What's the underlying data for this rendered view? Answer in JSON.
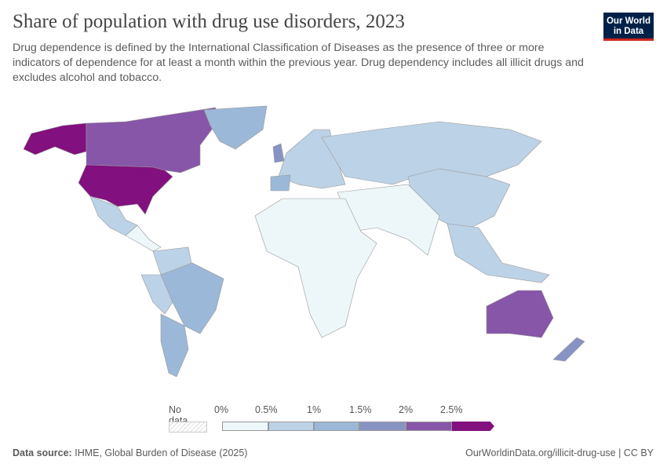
{
  "title": "Share of population with drug use disorders, 2023",
  "subtitle": "Drug dependence is defined by the International Classification of Diseases as the presence of three or more indicators of dependence for at least a month within the previous year. Drug dependency includes all illicit drugs and excludes alcohol and tobacco.",
  "logo": {
    "line1": "Our World",
    "line2": "in Data"
  },
  "legend": {
    "no_data": "No data",
    "ticks": [
      "0%",
      "0.5%",
      "1%",
      "1.5%",
      "2%",
      "2.5%"
    ],
    "colors": [
      "#edf7f9",
      "#bcd2e6",
      "#9bb8d8",
      "#8893c4",
      "#8756a8",
      "#82107e"
    ]
  },
  "footer": {
    "source_label": "Data source:",
    "source": "IHME, Global Burden of Disease (2025)",
    "url": "OurWorldinData.org/illicit-drug-use | CC BY"
  }
}
